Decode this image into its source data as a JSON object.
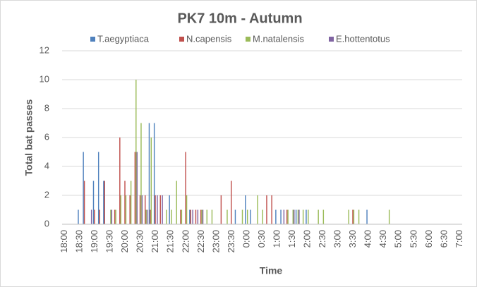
{
  "chart_data": {
    "type": "bar",
    "title": "PK7 10m - Autumn",
    "x_label": "Time",
    "y_label": "Total bat passes",
    "categories": [
      "18:00",
      null,
      null,
      "18:30",
      null,
      null,
      "19:00",
      null,
      null,
      "19:30",
      null,
      null,
      "20:00",
      null,
      null,
      "20:30",
      null,
      null,
      "21:00",
      null,
      null,
      "21:30",
      null,
      null,
      "22:00",
      null,
      null,
      "22:30",
      null,
      null,
      "23:00",
      null,
      null,
      "23:30",
      null,
      null,
      "0:00",
      null,
      null,
      "0:30",
      null,
      null,
      "1:00",
      null,
      null,
      "1:30",
      null,
      null,
      "2:00",
      null,
      null,
      "2:30",
      null,
      null,
      "3:00",
      null,
      null,
      "3:30",
      null,
      null,
      "4:00",
      null,
      null,
      "4:30",
      null,
      null,
      "5:00",
      null,
      null,
      "5:30",
      null,
      null,
      "6:00",
      null,
      null,
      "6:30",
      null,
      null,
      "7:00"
    ],
    "series": [
      {
        "name": "T.aegyptiaca",
        "color": "#4f81bd",
        "values": [
          0,
          0,
          0,
          1,
          5,
          0,
          3,
          5,
          3,
          0,
          0,
          0,
          0,
          0,
          0,
          0,
          0,
          7,
          7,
          0,
          0,
          2,
          0,
          0,
          0,
          1,
          0,
          0,
          0,
          0,
          0,
          0,
          0,
          0,
          1,
          0,
          2,
          1,
          0,
          0,
          0,
          0,
          1,
          1,
          0,
          0,
          1,
          0,
          1,
          0,
          0,
          0,
          0,
          0,
          0,
          0,
          0,
          0,
          0,
          0,
          1,
          0,
          0,
          0,
          0,
          0,
          0,
          0,
          0,
          0,
          0,
          0,
          0,
          0,
          0,
          0,
          0,
          0,
          0
        ]
      },
      {
        "name": "N.capensis",
        "color": "#c0504d",
        "values": [
          0,
          0,
          0,
          0,
          3,
          0,
          1,
          1,
          3,
          0,
          1,
          6,
          3,
          2,
          5,
          2,
          2,
          1,
          2,
          2,
          0,
          0,
          0,
          1,
          5,
          1,
          1,
          1,
          0,
          0,
          0,
          2,
          0,
          3,
          0,
          0,
          0,
          0,
          0,
          0,
          2,
          2,
          0,
          0,
          1,
          0,
          0,
          0,
          0,
          0,
          0,
          0,
          0,
          0,
          0,
          0,
          0,
          1,
          0,
          0,
          0,
          0,
          0,
          0,
          0,
          0,
          0,
          0,
          0,
          0,
          0,
          0,
          0,
          0,
          0,
          0,
          0,
          0,
          0
        ]
      },
      {
        "name": "M.natalensis",
        "color": "#9bbb59",
        "values": [
          0,
          0,
          0,
          0,
          0,
          0,
          0,
          0,
          0,
          1,
          1,
          2,
          2,
          3,
          10,
          7,
          1,
          6,
          0,
          0,
          1,
          1,
          3,
          1,
          2,
          0,
          0,
          1,
          1,
          1,
          0,
          0,
          1,
          0,
          0,
          1,
          1,
          0,
          2,
          1,
          0,
          0,
          0,
          0,
          1,
          1,
          1,
          1,
          1,
          0,
          1,
          1,
          0,
          0,
          0,
          0,
          1,
          1,
          1,
          0,
          0,
          0,
          0,
          0,
          1,
          0,
          0,
          0,
          0,
          0,
          0,
          0,
          0,
          0,
          0,
          0,
          0,
          0,
          0
        ]
      },
      {
        "name": "E.hottentotus",
        "color": "#8064a2",
        "values": [
          0,
          0,
          0,
          0,
          0,
          1,
          0,
          0,
          0,
          1,
          0,
          0,
          0,
          0,
          5,
          2,
          1,
          0,
          2,
          2,
          0,
          0,
          0,
          0,
          0,
          1,
          1,
          1,
          0,
          0,
          0,
          0,
          0,
          0,
          0,
          0,
          0,
          0,
          0,
          0,
          0,
          0,
          0,
          1,
          0,
          1,
          1,
          0,
          0,
          0,
          0,
          0,
          0,
          0,
          0,
          0,
          0,
          0,
          0,
          0,
          0,
          0,
          0,
          0,
          0,
          0,
          0,
          0,
          0,
          0,
          0,
          0,
          0,
          0,
          0,
          0,
          0,
          0,
          0
        ]
      }
    ],
    "ylim": [
      0,
      12
    ],
    "yticks": [
      0,
      2,
      4,
      6,
      8,
      10,
      12
    ],
    "grid": true,
    "legend": "top"
  }
}
